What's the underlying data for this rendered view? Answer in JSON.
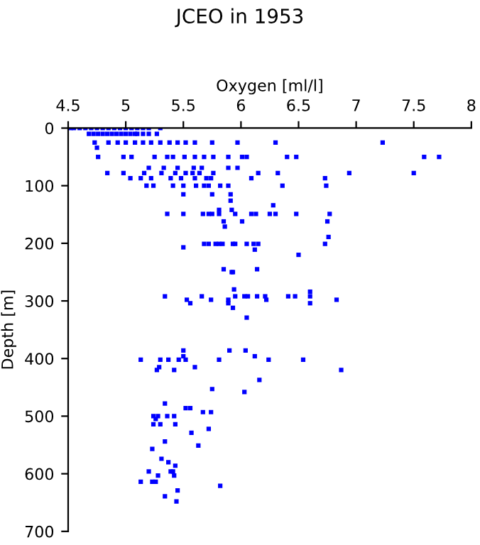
{
  "chart_data": {
    "type": "scatter",
    "title": "JCEO in 1953",
    "xlabel": "Oxygen [ml/l]",
    "ylabel": "Depth [m]",
    "xlim": [
      4.5,
      8
    ],
    "xticks": [
      4.5,
      5,
      5.5,
      6,
      6.5,
      7,
      7.5,
      8
    ],
    "ylim": [
      700,
      0
    ],
    "yticks": [
      0,
      100,
      200,
      300,
      400,
      500,
      600,
      700
    ],
    "grid": false,
    "legend": false,
    "marker": "square",
    "series": [
      {
        "color": "#0000ff",
        "x": [
          4.52,
          4.55,
          4.6,
          4.65,
          4.7,
          4.75,
          4.8,
          4.85,
          4.9,
          4.95,
          5.0,
          5.05,
          5.1,
          5.15,
          5.2,
          5.3,
          4.68,
          4.72,
          4.76,
          4.8,
          4.84,
          4.88,
          4.92,
          4.96,
          5.0,
          5.04,
          5.08,
          5.1,
          5.15,
          5.2,
          5.27,
          4.73,
          4.85,
          4.93,
          5.0,
          5.08,
          5.15,
          5.22,
          5.3,
          5.38,
          5.45,
          5.52,
          5.6,
          5.75,
          5.97,
          6.3,
          7.23,
          4.75,
          4.76,
          4.98,
          5.05,
          5.25,
          5.36,
          5.41,
          5.51,
          5.6,
          5.68,
          5.76,
          5.89,
          6.01,
          6.05,
          6.4,
          6.48,
          7.59,
          7.72,
          5.2,
          5.33,
          5.45,
          5.59,
          5.66,
          5.89,
          5.97,
          4.84,
          4.98,
          5.16,
          5.31,
          5.43,
          5.52,
          5.58,
          5.64,
          5.76,
          6.15,
          6.32,
          6.94,
          7.5,
          5.04,
          5.13,
          5.22,
          5.39,
          5.48,
          5.6,
          5.7,
          5.74,
          6.09,
          6.73,
          5.18,
          5.24,
          5.41,
          5.5,
          5.61,
          5.68,
          5.72,
          5.82,
          5.89,
          6.36,
          6.74,
          5.5,
          5.75,
          5.91,
          5.91,
          6.28,
          5.81,
          5.92,
          5.36,
          5.5,
          5.67,
          5.72,
          5.75,
          5.81,
          5.95,
          6.09,
          6.13,
          6.25,
          6.3,
          6.48,
          6.77,
          5.85,
          6.01,
          6.75,
          5.86,
          6.76,
          5.68,
          5.72,
          5.78,
          5.81,
          5.84,
          5.93,
          5.95,
          6.05,
          6.11,
          6.15,
          6.73,
          5.5,
          6.12,
          6.5,
          5.85,
          6.14,
          5.92,
          5.93,
          5.94,
          6.6,
          5.34,
          5.66,
          5.95,
          6.03,
          6.06,
          6.14,
          6.21,
          6.41,
          6.47,
          6.6,
          5.53,
          5.74,
          5.89,
          6.22,
          6.83,
          5.56,
          5.89,
          6.6,
          5.93,
          6.05,
          5.5,
          5.9,
          6.04,
          5.5,
          6.12,
          5.13,
          5.3,
          5.37,
          5.46,
          5.52,
          5.81,
          6.24,
          6.54,
          5.29,
          5.6,
          5.27,
          5.42,
          6.87,
          6.16,
          5.75,
          6.03,
          5.34,
          5.52,
          5.56,
          5.67,
          5.74,
          5.24,
          5.28,
          5.36,
          5.42,
          5.26,
          5.24,
          5.3,
          5.43,
          5.72,
          5.57,
          5.34,
          5.63,
          5.23,
          5.31,
          5.37,
          5.43,
          5.2,
          5.39,
          5.41,
          5.28,
          5.42,
          5.13,
          5.23,
          5.26,
          5.82,
          5.45,
          5.34,
          5.44
        ],
        "values": [
          0,
          0,
          0,
          0,
          0,
          0,
          0,
          0,
          0,
          0,
          0,
          0,
          0,
          0,
          0,
          0,
          10,
          10,
          10,
          10,
          10,
          10,
          10,
          10,
          10,
          10,
          10,
          10,
          10,
          10,
          10,
          25,
          25,
          25,
          25,
          25,
          25,
          25,
          25,
          25,
          25,
          25,
          25,
          25,
          25,
          25,
          25,
          34,
          50,
          50,
          50,
          50,
          50,
          50,
          50,
          50,
          50,
          50,
          50,
          50,
          50,
          50,
          50,
          50,
          50,
          69,
          69,
          69,
          69,
          69,
          69,
          69,
          78,
          78,
          78,
          78,
          78,
          78,
          78,
          78,
          78,
          78,
          78,
          78,
          78,
          87,
          87,
          87,
          87,
          87,
          87,
          87,
          87,
          87,
          87,
          100,
          100,
          100,
          100,
          100,
          100,
          100,
          100,
          100,
          100,
          100,
          115,
          115,
          115,
          126,
          134,
          142,
          142,
          149,
          149,
          149,
          149,
          149,
          149,
          149,
          149,
          149,
          149,
          149,
          149,
          149,
          162,
          162,
          162,
          171,
          189,
          201,
          201,
          201,
          201,
          201,
          201,
          201,
          201,
          201,
          201,
          201,
          207,
          211,
          220,
          245,
          245,
          250,
          250,
          280,
          284,
          292,
          292,
          292,
          292,
          292,
          292,
          292,
          292,
          292,
          292,
          298,
          298,
          298,
          298,
          298,
          304,
          304,
          304,
          312,
          329,
          386,
          386,
          386,
          396,
          396,
          402,
          402,
          402,
          402,
          402,
          402,
          402,
          402,
          415,
          415,
          420,
          420,
          420,
          437,
          453,
          458,
          478,
          486,
          486,
          493,
          493,
          500,
          500,
          500,
          500,
          505,
          514,
          514,
          514,
          522,
          529,
          544,
          551,
          557,
          574,
          580,
          586,
          596,
          596,
          596,
          603,
          603,
          614,
          614,
          614,
          621,
          629,
          639,
          648
        ]
      }
    ]
  }
}
